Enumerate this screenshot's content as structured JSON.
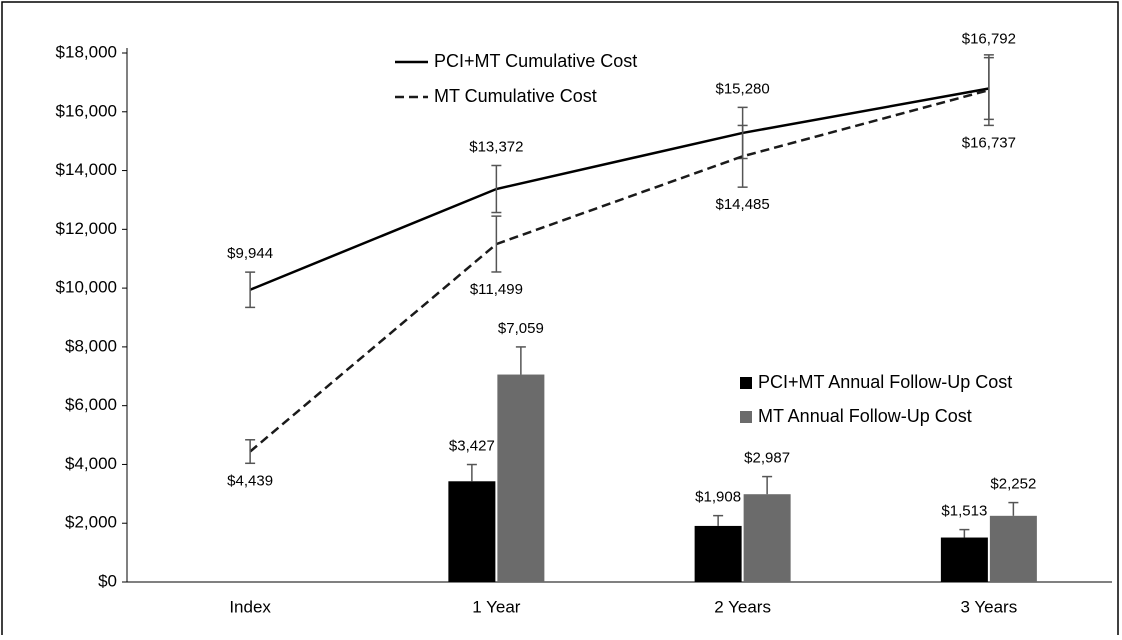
{
  "chart_data": {
    "type": "combo",
    "categories": [
      "Index",
      "1 Year",
      "2 Years",
      "3 Years"
    ],
    "ylim": [
      0,
      18000
    ],
    "yticks": [
      {
        "value": 0,
        "label": "$0"
      },
      {
        "value": 2000,
        "label": "$2,000"
      },
      {
        "value": 4000,
        "label": "$4,000"
      },
      {
        "value": 6000,
        "label": "$6,000"
      },
      {
        "value": 8000,
        "label": "$8,000"
      },
      {
        "value": 10000,
        "label": "$10,000"
      },
      {
        "value": 12000,
        "label": "$12,000"
      },
      {
        "value": 14000,
        "label": "$14,000"
      },
      {
        "value": 16000,
        "label": "$16,000"
      },
      {
        "value": 18000,
        "label": "$18,000"
      }
    ],
    "series": [
      {
        "name": "PCI+MT Cumulative Cost",
        "kind": "line",
        "dashed": false,
        "color": "#000000",
        "label_side": "above",
        "values": [
          9944,
          13372,
          15280,
          16792
        ],
        "value_labels": [
          "$9,944",
          "$13,372",
          "$15,280",
          "$16,792"
        ],
        "errors": [
          600,
          800,
          870,
          1050
        ]
      },
      {
        "name": "MT Cumulative Cost",
        "kind": "line",
        "dashed": true,
        "color": "#1a1a1a",
        "label_side": "below",
        "values": [
          4439,
          11499,
          14485,
          16737
        ],
        "value_labels": [
          "$4,439",
          "$11,499",
          "$14,485",
          "$16,737"
        ],
        "errors": [
          400,
          950,
          1050,
          1200
        ]
      },
      {
        "name": "PCI+MT Annual Follow-Up Cost",
        "kind": "bar",
        "color": "#000000",
        "values": [
          null,
          3427,
          1908,
          1513
        ],
        "value_labels": [
          null,
          "$3,427",
          "$1,908",
          "$1,513"
        ],
        "errors": [
          null,
          570,
          350,
          270
        ]
      },
      {
        "name": "MT Annual Follow-Up Cost",
        "kind": "bar",
        "color": "#6b6b6b",
        "values": [
          null,
          7059,
          2987,
          2252
        ],
        "value_labels": [
          null,
          "$7,059",
          "$2,987",
          "$2,252"
        ],
        "errors": [
          null,
          940,
          600,
          450
        ]
      }
    ]
  }
}
